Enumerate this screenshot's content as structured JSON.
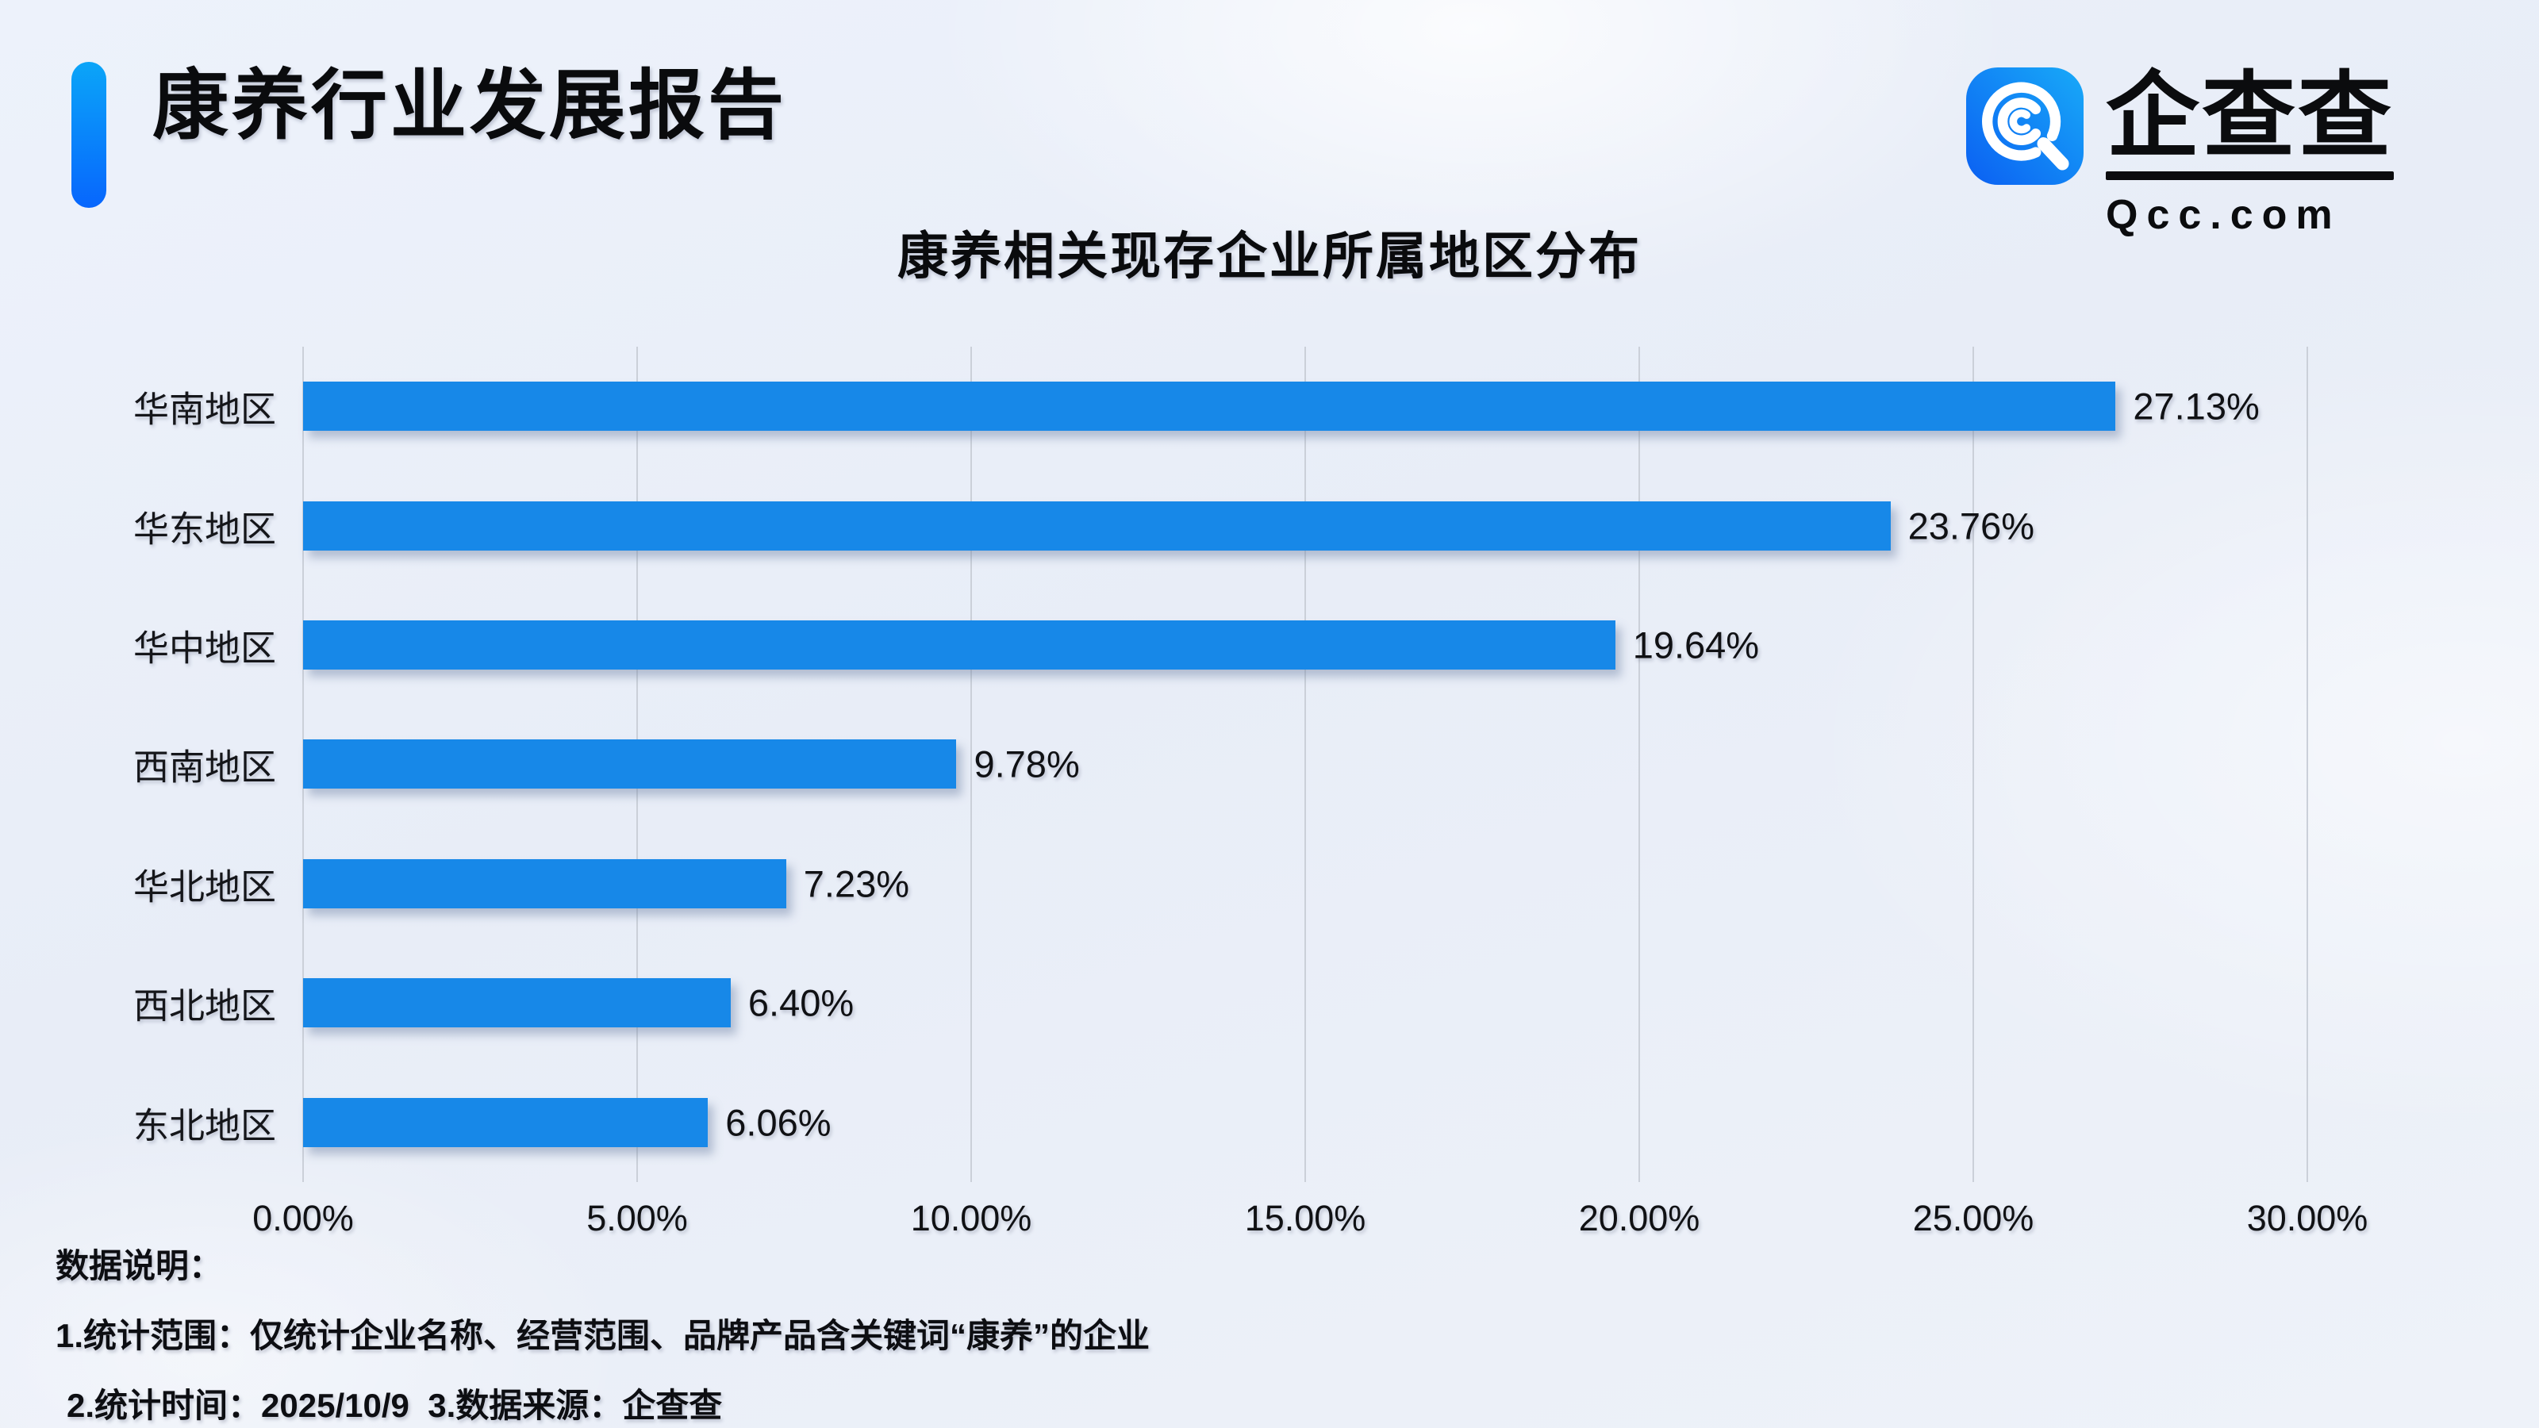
{
  "header": {
    "title": "康养行业发展报告"
  },
  "logo": {
    "brand": "企查查",
    "domain": "Qcc.com",
    "icon": "qcc-magnifier-icon",
    "icon_gradient_start": "#0b5ff2",
    "icon_gradient_end": "#18aaf8"
  },
  "chart_data": {
    "type": "bar",
    "orientation": "horizontal",
    "title": "康养相关现存企业所属地区分布",
    "categories": [
      "华南地区",
      "华东地区",
      "华中地区",
      "西南地区",
      "华北地区",
      "西北地区",
      "东北地区"
    ],
    "values": [
      27.13,
      23.76,
      19.64,
      9.78,
      7.23,
      6.4,
      6.06
    ],
    "value_labels": [
      "27.13%",
      "23.76%",
      "19.64%",
      "9.78%",
      "7.23%",
      "6.40%",
      "6.06%"
    ],
    "x_ticks": [
      "0.00%",
      "5.00%",
      "10.00%",
      "15.00%",
      "20.00%",
      "25.00%",
      "30.00%"
    ],
    "x_tick_values": [
      0,
      5,
      10,
      15,
      20,
      25,
      30
    ],
    "xlim": [
      0,
      30
    ],
    "xlabel": "",
    "ylabel": "",
    "grid": true,
    "legend": false,
    "bar_color": "#1788e8",
    "gridline_color": "#cbd0d9"
  },
  "notes": {
    "heading": "数据说明：",
    "line1": "1.统计范围：仅统计企业名称、经营范围、品牌产品含关键词“康养”的企业",
    "line2": "2.统计时间：2025/10/9  3.数据来源：企查查"
  }
}
